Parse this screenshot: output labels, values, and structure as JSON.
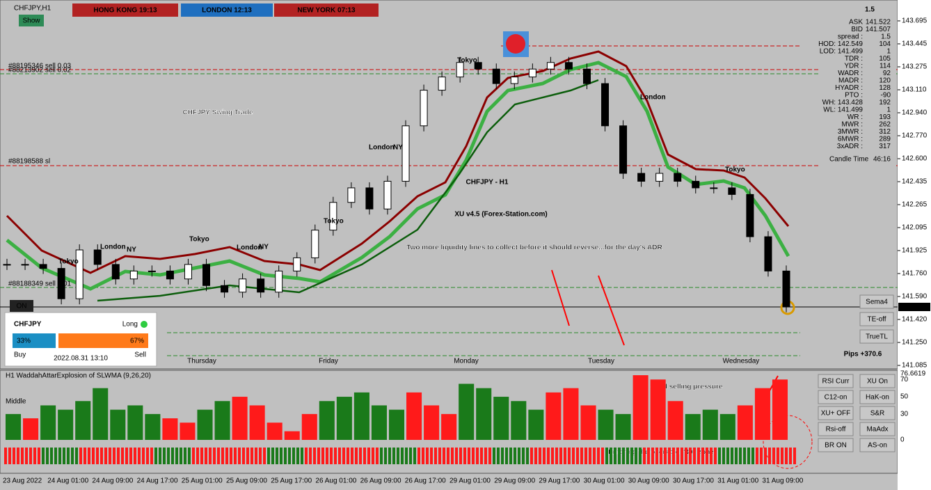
{
  "header": {
    "symbol": "CHFJPY,H1",
    "clocks": [
      "HONG KONG  19:13",
      "LONDON  12:13",
      "NEW YORK  07:13"
    ],
    "show_button": "Show",
    "spread_top": "1.5"
  },
  "chart": {
    "title": "CHFJPY Swing Trade",
    "watermark": "CHFJPY - H1",
    "watermark_sub": "XU v4.5 (Forex-Station.com)",
    "annotation": "Two more liquidity lines to collect before it should reverse...for the day's ADR",
    "price_axis": [
      "143.695",
      "143.445",
      "143.275",
      "143.110",
      "142.940",
      "142.770",
      "142.600",
      "142.435",
      "142.265",
      "142.095",
      "141.925",
      "141.760",
      "141.590",
      "141.420",
      "141.250",
      "141.085"
    ],
    "current_price": "141.512",
    "closes": [
      141.85,
      141.85,
      141.82,
      141.59,
      141.96,
      141.85,
      141.74,
      141.8,
      141.8,
      141.74,
      141.85,
      141.69,
      141.64,
      141.74,
      141.64,
      141.8,
      141.9,
      142.11,
      142.32,
      142.43,
      142.27,
      142.48,
      142.9,
      143.17,
      143.27,
      143.38,
      143.33,
      143.22,
      143.27,
      143.33,
      143.38,
      143.33,
      143.22,
      142.9,
      142.54,
      142.48,
      142.54,
      142.48,
      142.43,
      142.43,
      142.38,
      142.06,
      141.8,
      141.53
    ],
    "days": [
      "Thursday",
      "Friday",
      "Monday",
      "Tuesday",
      "Wednesday"
    ],
    "sessions": [
      "Tokyo",
      "London",
      "NY",
      "Tokyo",
      "London",
      "NY",
      "Tokyo",
      "London",
      "NY",
      "Tokyo",
      "London",
      "Tokyo"
    ],
    "orders": [
      "#88195346 sell 0.03",
      "#88213902 sell 0.02",
      "#88198588 sl",
      "#88188349 sell 0.01"
    ],
    "pips": "Pips +370.6",
    "on_label": "ON",
    "buttons": [
      "Sema4",
      "TE-off",
      "TrueTL"
    ]
  },
  "sentiment": {
    "symbol": "CHFJPY",
    "side": "Long",
    "buy_pct": "33%",
    "sell_pct": "67%",
    "buy": "Buy",
    "time": "2022.08.31 13:10",
    "sell": "Sell"
  },
  "info_panel": [
    [
      "ASK",
      "141.522"
    ],
    [
      "BID",
      "141.507"
    ],
    [
      "spread :",
      "1.5"
    ],
    [
      "HOD: 142.549",
      "104"
    ],
    [
      "LOD: 141.499",
      "1"
    ],
    [
      "TDR :",
      "105"
    ],
    [
      "YDR :",
      "114"
    ],
    [
      "WADR :",
      "92"
    ],
    [
      "MADR :",
      "120"
    ],
    [
      "HYADR :",
      "128"
    ],
    [
      "PTO :",
      "-90"
    ],
    [
      "WH: 143.428",
      "192"
    ],
    [
      "WL: 141.499",
      "1"
    ],
    [
      "WR :",
      "193"
    ],
    [
      "MWR :",
      "262"
    ],
    [
      "3MWR :",
      "312"
    ],
    [
      "6MWR :",
      "289"
    ],
    [
      "3xADR :",
      "317"
    ],
    [
      "Candle Time",
      "46:16"
    ]
  ],
  "indicator": {
    "title": "H1 WaddahAttarExplosion of SLWMA (9,26,20)",
    "middle": "Middle",
    "note1": "Still good selling pressure",
    "note2": "Entering the oversold \"30\" zone",
    "axis": [
      "76.6619",
      "70",
      "50",
      "30",
      "0"
    ],
    "values": [
      30,
      25,
      40,
      35,
      45,
      60,
      35,
      40,
      30,
      25,
      20,
      35,
      45,
      50,
      40,
      20,
      10,
      30,
      45,
      50,
      55,
      40,
      35,
      55,
      40,
      30,
      65,
      60,
      50,
      45,
      35,
      55,
      60,
      40,
      35,
      30,
      75,
      70,
      45,
      30,
      35,
      30,
      40,
      60,
      70
    ],
    "colors": [
      "#1a7a1a",
      "#ff1a1a",
      "#1a7a1a",
      "#1a7a1a",
      "#1a7a1a",
      "#1a7a1a",
      "#1a7a1a",
      "#1a7a1a",
      "#1a7a1a",
      "#ff1a1a",
      "#ff1a1a",
      "#1a7a1a",
      "#1a7a1a",
      "#ff1a1a",
      "#ff1a1a",
      "#ff1a1a",
      "#ff1a1a",
      "#ff1a1a",
      "#1a7a1a",
      "#1a7a1a",
      "#1a7a1a",
      "#1a7a1a",
      "#1a7a1a",
      "#ff1a1a",
      "#ff1a1a",
      "#ff1a1a",
      "#1a7a1a",
      "#1a7a1a",
      "#1a7a1a",
      "#1a7a1a",
      "#1a7a1a",
      "#ff1a1a",
      "#ff1a1a",
      "#ff1a1a",
      "#1a7a1a",
      "#1a7a1a",
      "#ff1a1a",
      "#ff1a1a",
      "#ff1a1a",
      "#1a7a1a",
      "#1a7a1a",
      "#1a7a1a",
      "#ff1a1a",
      "#ff1a1a",
      "#ff1a1a"
    ],
    "buttons": [
      "RSI Curr",
      "XU On",
      "C12-on",
      "HaK-on",
      "XU+ OFF",
      "S&R",
      "Rsi-off",
      "MaAdx",
      "BR ON",
      "AS-on"
    ]
  },
  "time_axis": [
    "23 Aug 2022",
    "24 Aug 01:00",
    "24 Aug 09:00",
    "24 Aug 17:00",
    "25 Aug 01:00",
    "25 Aug 09:00",
    "25 Aug 17:00",
    "26 Aug 01:00",
    "26 Aug 09:00",
    "26 Aug 17:00",
    "29 Aug 01:00",
    "29 Aug 09:00",
    "29 Aug 17:00",
    "30 Aug 01:00",
    "30 Aug 09:00",
    "30 Aug 17:00",
    "31 Aug 01:00",
    "31 Aug 09:00"
  ]
}
